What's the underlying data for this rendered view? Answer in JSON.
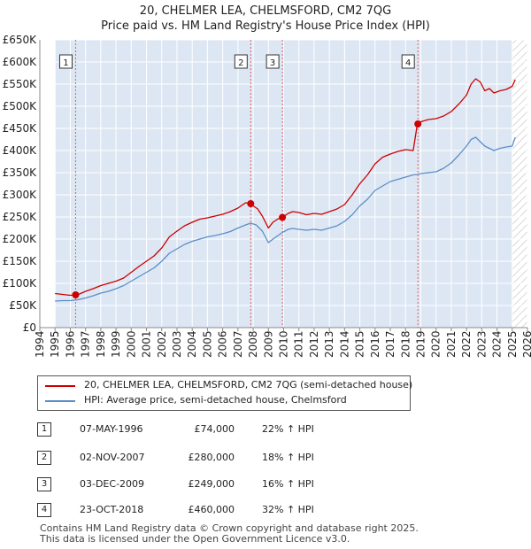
{
  "title_line1": "20, CHELMER LEA, CHELMSFORD, CM2 7QG",
  "title_line2": "Price paid vs. HM Land Registry's House Price Index (HPI)",
  "chart_data": {
    "type": "line",
    "title": "20, CHELMER LEA, CHELMSFORD, CM2 7QG — Price paid vs. HM Land Registry's House Price Index (HPI)",
    "xlabel": "",
    "ylabel": "",
    "xlim": [
      1994,
      2026
    ],
    "ylim": [
      0,
      650000
    ],
    "grid": true,
    "y_ticks": [
      0,
      50000,
      100000,
      150000,
      200000,
      250000,
      300000,
      350000,
      400000,
      450000,
      500000,
      550000,
      600000,
      650000
    ],
    "y_tick_labels": [
      "£0",
      "£50K",
      "£100K",
      "£150K",
      "£200K",
      "£250K",
      "£300K",
      "£350K",
      "£400K",
      "£450K",
      "£500K",
      "£550K",
      "£600K",
      "£650K"
    ],
    "x_ticks": [
      1994,
      1995,
      1996,
      1997,
      1998,
      1999,
      2000,
      2001,
      2002,
      2003,
      2004,
      2005,
      2006,
      2007,
      2008,
      2009,
      2010,
      2011,
      2012,
      2013,
      2014,
      2015,
      2016,
      2017,
      2018,
      2019,
      2020,
      2021,
      2022,
      2023,
      2024,
      2025,
      2026
    ],
    "x_tick_labels": [
      "1994",
      "1995",
      "1996",
      "1997",
      "1998",
      "1999",
      "2000",
      "2001",
      "2002",
      "2003",
      "2004",
      "2005",
      "2006",
      "2007",
      "2008",
      "2009",
      "2010",
      "2011",
      "2012",
      "2013",
      "2014",
      "2015",
      "2016",
      "2017",
      "2018",
      "2019",
      "2020",
      "2021",
      "2022",
      "2023",
      "2024",
      "2025",
      "2026"
    ],
    "sale_band_start": 1995.0,
    "hatched_after": 2025.0,
    "series": [
      {
        "name": "20, CHELMER LEA, CHELMSFORD, CM2 7QG (semi-detached house)",
        "color": "#cc0000",
        "x": [
          1995.0,
          1995.5,
          1996.0,
          1996.35,
          1996.6,
          1997.0,
          1997.5,
          1998.0,
          1998.5,
          1999.0,
          1999.5,
          2000.0,
          2000.5,
          2001.0,
          2001.5,
          2002.0,
          2002.5,
          2003.0,
          2003.5,
          2004.0,
          2004.5,
          2005.0,
          2005.5,
          2006.0,
          2006.5,
          2007.0,
          2007.5,
          2007.84,
          2008.0,
          2008.3,
          2008.6,
          2009.0,
          2009.3,
          2009.6,
          2009.92,
          2010.3,
          2010.6,
          2011.0,
          2011.5,
          2012.0,
          2012.5,
          2013.0,
          2013.5,
          2014.0,
          2014.5,
          2015.0,
          2015.5,
          2016.0,
          2016.5,
          2017.0,
          2017.5,
          2018.0,
          2018.5,
          2018.75,
          2018.81,
          2019.0,
          2019.5,
          2020.0,
          2020.5,
          2021.0,
          2021.5,
          2022.0,
          2022.3,
          2022.6,
          2022.9,
          2023.2,
          2023.5,
          2023.8,
          2024.2,
          2024.6,
          2025.0,
          2025.2
        ],
        "y": [
          77000,
          75000,
          73000,
          74000,
          76000,
          82000,
          88000,
          95000,
          100000,
          105000,
          112000,
          125000,
          138000,
          150000,
          162000,
          180000,
          205000,
          218000,
          230000,
          238000,
          245000,
          248000,
          252000,
          256000,
          262000,
          270000,
          282000,
          280000,
          275000,
          268000,
          252000,
          225000,
          238000,
          245000,
          249000,
          258000,
          262000,
          260000,
          255000,
          258000,
          256000,
          262000,
          268000,
          278000,
          300000,
          325000,
          345000,
          370000,
          385000,
          392000,
          398000,
          402000,
          400000,
          455000,
          460000,
          465000,
          470000,
          472000,
          478000,
          488000,
          505000,
          525000,
          550000,
          562000,
          555000,
          535000,
          540000,
          530000,
          535000,
          538000,
          545000,
          560000
        ]
      },
      {
        "name": "HPI: Average price, semi-detached house, Chelmsford",
        "color": "#5b8ec8",
        "x": [
          1995.0,
          1995.5,
          1996.0,
          1996.5,
          1997.0,
          1997.5,
          1998.0,
          1998.5,
          1999.0,
          1999.5,
          2000.0,
          2000.5,
          2001.0,
          2001.5,
          2002.0,
          2002.5,
          2003.0,
          2003.5,
          2004.0,
          2004.5,
          2005.0,
          2005.5,
          2006.0,
          2006.5,
          2007.0,
          2007.5,
          2007.84,
          2008.2,
          2008.6,
          2009.0,
          2009.3,
          2009.92,
          2010.3,
          2010.6,
          2011.0,
          2011.5,
          2012.0,
          2012.5,
          2013.0,
          2013.5,
          2014.0,
          2014.5,
          2015.0,
          2015.5,
          2016.0,
          2016.5,
          2017.0,
          2017.5,
          2018.0,
          2018.5,
          2018.81,
          2019.0,
          2019.5,
          2020.0,
          2020.5,
          2021.0,
          2021.5,
          2022.0,
          2022.3,
          2022.6,
          2022.9,
          2023.2,
          2023.5,
          2023.8,
          2024.2,
          2024.6,
          2025.0,
          2025.2
        ],
        "y": [
          60000,
          61000,
          61000,
          63000,
          67000,
          72000,
          78000,
          82000,
          88000,
          95000,
          105000,
          115000,
          125000,
          135000,
          150000,
          168000,
          178000,
          188000,
          195000,
          200000,
          205000,
          208000,
          212000,
          217000,
          225000,
          232000,
          236000,
          232000,
          218000,
          192000,
          200000,
          215000,
          222000,
          224000,
          222000,
          220000,
          222000,
          220000,
          225000,
          230000,
          240000,
          255000,
          275000,
          290000,
          310000,
          320000,
          330000,
          335000,
          340000,
          345000,
          346000,
          348000,
          350000,
          352000,
          360000,
          372000,
          390000,
          410000,
          425000,
          430000,
          420000,
          410000,
          405000,
          400000,
          405000,
          408000,
          410000,
          430000
        ]
      }
    ],
    "markers": [
      {
        "label": "1",
        "x": 1996.35,
        "y": 74000
      },
      {
        "label": "2",
        "x": 2007.84,
        "y": 280000
      },
      {
        "label": "3",
        "x": 2009.92,
        "y": 249000
      },
      {
        "label": "4",
        "x": 2018.81,
        "y": 460000
      }
    ]
  },
  "legend": {
    "property_label": "20, CHELMER LEA, CHELMSFORD, CM2 7QG (semi-detached house)",
    "hpi_label": "HPI: Average price, semi-detached house, Chelmsford",
    "property_color": "#cc0000",
    "hpi_color": "#5b8ec8"
  },
  "transactions": [
    {
      "num": "1",
      "date": "07-MAY-1996",
      "price": "£74,000",
      "hpi": "22% ↑ HPI"
    },
    {
      "num": "2",
      "date": "02-NOV-2007",
      "price": "£280,000",
      "hpi": "18% ↑ HPI"
    },
    {
      "num": "3",
      "date": "03-DEC-2009",
      "price": "£249,000",
      "hpi": "16% ↑ HPI"
    },
    {
      "num": "4",
      "date": "23-OCT-2018",
      "price": "£460,000",
      "hpi": "32% ↑ HPI"
    }
  ],
  "footer_line1": "Contains HM Land Registry data © Crown copyright and database right 2025.",
  "footer_line2": "This data is licensed under the Open Government Licence v3.0."
}
